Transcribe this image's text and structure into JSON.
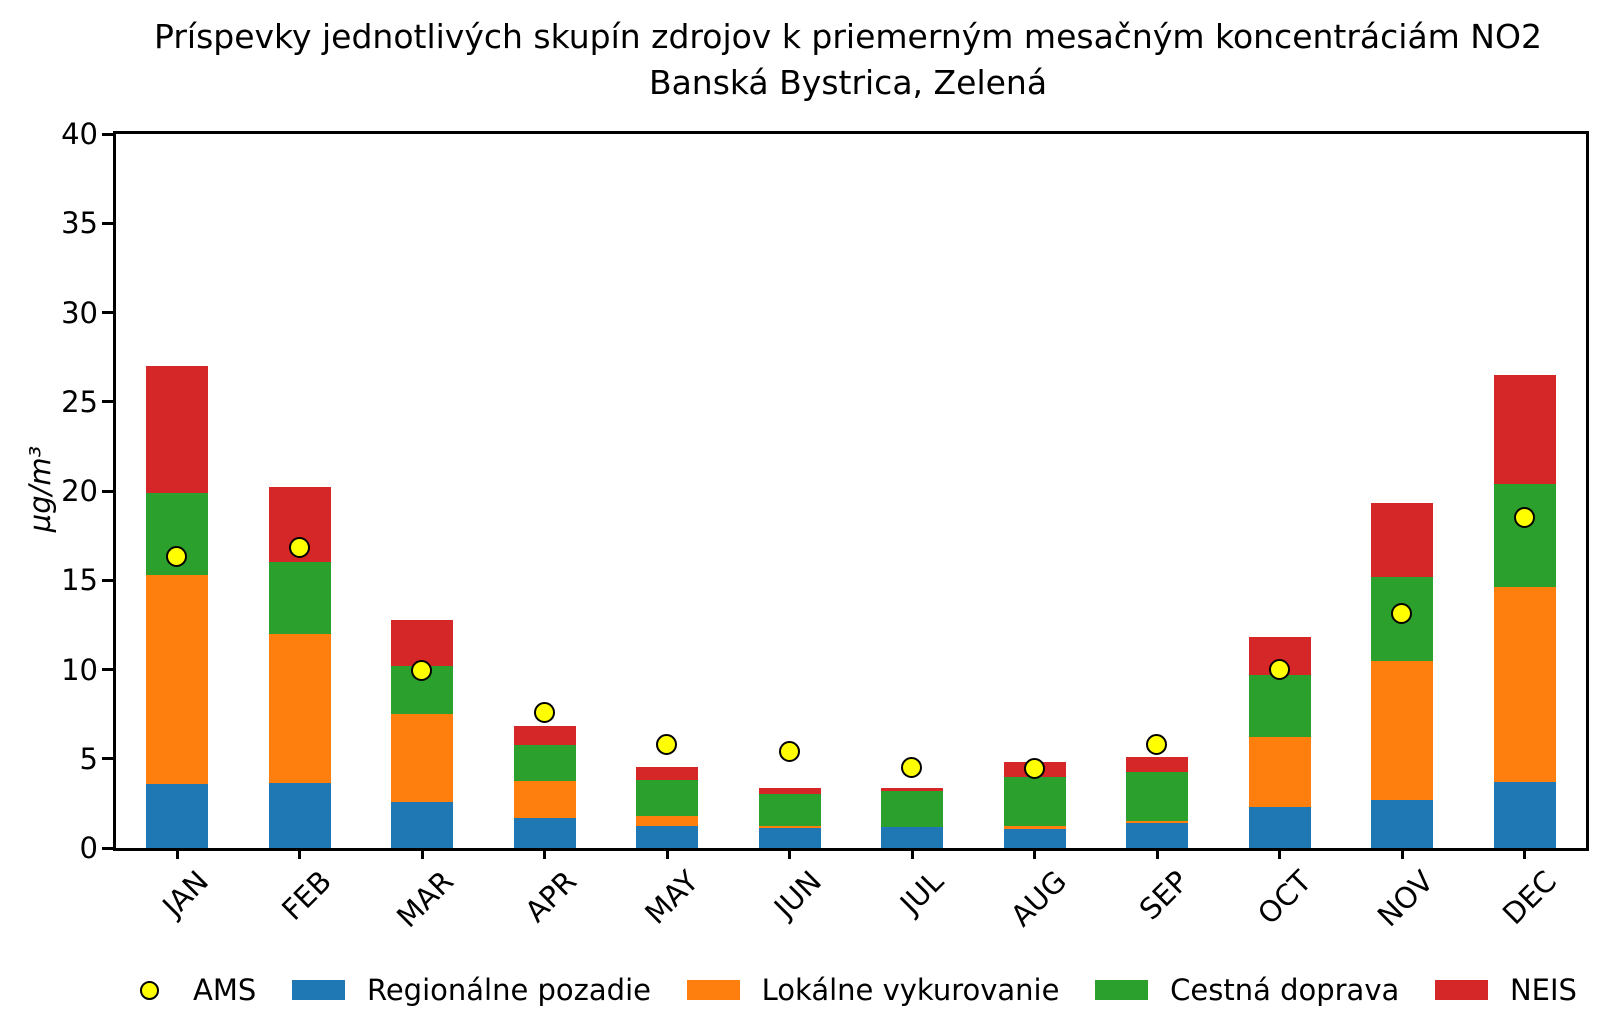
{
  "title": {
    "line1": "Príspevky jednotlivých skupín zdrojov k priemerným mesačným koncentráciám NO2",
    "line2": "Banská Bystrica, Zelená"
  },
  "chart_data": {
    "type": "bar",
    "stacked": true,
    "title_line1": "Príspevky jednotlivých skupín zdrojov k priemerným mesačným koncentráciám NO2",
    "title_line2": "Banská Bystrica, Zelená",
    "categories": [
      "JAN",
      "FEB",
      "MAR",
      "APR",
      "MAY",
      "JUN",
      "JUL",
      "AUG",
      "SEP",
      "OCT",
      "NOV",
      "DEC"
    ],
    "series": [
      {
        "name": "Regionálne pozadie",
        "color": "#1f77b4",
        "values": [
          3.6,
          3.65,
          2.6,
          1.7,
          1.25,
          1.1,
          1.2,
          1.05,
          1.4,
          2.3,
          2.7,
          3.7
        ]
      },
      {
        "name": "Lokálne vykurovanie",
        "color": "#ff7f0e",
        "values": [
          11.7,
          8.35,
          4.9,
          2.05,
          0.55,
          0.15,
          0.0,
          0.2,
          0.1,
          3.9,
          7.8,
          10.9
        ]
      },
      {
        "name": "Cestná doprava",
        "color": "#2ca02c",
        "values": [
          4.6,
          4.0,
          2.7,
          2.0,
          2.0,
          1.8,
          2.0,
          2.75,
          2.75,
          3.5,
          4.7,
          5.8
        ]
      },
      {
        "name": "NEIS",
        "color": "#d62728",
        "values": [
          7.1,
          4.2,
          2.6,
          1.1,
          0.75,
          0.3,
          0.15,
          0.8,
          0.85,
          2.1,
          4.1,
          6.1
        ]
      }
    ],
    "stack_totals": [
      27.0,
      20.2,
      12.8,
      6.85,
      4.55,
      3.35,
      3.35,
      4.8,
      5.1,
      11.8,
      19.3,
      26.5
    ],
    "markers": {
      "name": "AMS",
      "color": "#ffff00",
      "edge_color": "#000000",
      "values": [
        16.3,
        16.8,
        9.9,
        7.55,
        5.75,
        5.4,
        4.5,
        4.45,
        5.75,
        10.0,
        13.1,
        18.5
      ]
    },
    "ylabel": "µg/m³",
    "xlabel": "",
    "ylim": [
      0,
      40
    ],
    "yticks": [
      0,
      5,
      10,
      15,
      20,
      25,
      30,
      35,
      40
    ],
    "grid": false,
    "legend_position": "bottom"
  }
}
